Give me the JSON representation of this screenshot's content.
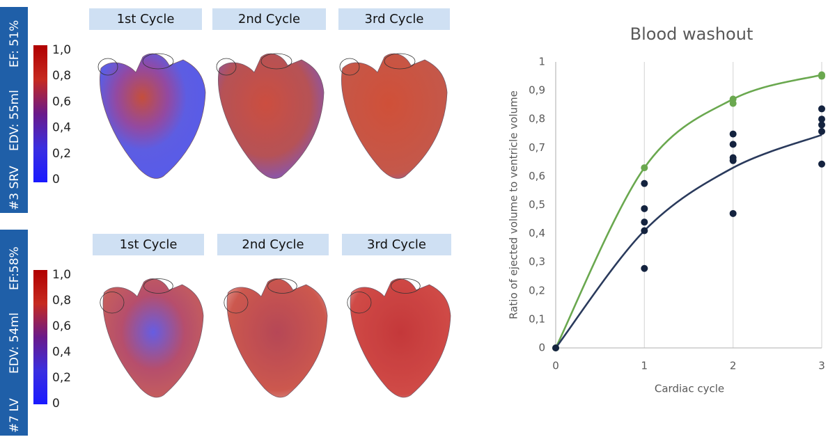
{
  "panels": [
    {
      "sidebar": [
        "#3 SRV",
        "EDV: 55ml",
        "EF: 51%"
      ],
      "cycles": [
        "1st Cycle",
        "2nd Cycle",
        "3rd Cycle"
      ],
      "colorbar_ticks": [
        {
          "value": 1,
          "label": "1,0"
        },
        {
          "value": 0.8,
          "label": "0,8"
        },
        {
          "value": 0.6,
          "label": "0,6"
        },
        {
          "value": 0.4,
          "label": "0,4"
        },
        {
          "value": 0.2,
          "label": "0,2"
        },
        0
      ]
    },
    {
      "sidebar": [
        "#7 LV",
        "EDV: 54ml",
        "EF:58%"
      ],
      "cycles": [
        "1st Cycle",
        "2nd Cycle",
        "3rd Cycle"
      ],
      "colorbar_ticks": [
        {
          "value": 1,
          "label": "1,0"
        },
        {
          "value": 0.8,
          "label": "0,8"
        },
        {
          "value": 0.6,
          "label": "0,6"
        },
        {
          "value": 0.4,
          "label": "0,4"
        },
        {
          "value": 0.2,
          "label": "0,2"
        },
        0
      ]
    }
  ],
  "chart_data": {
    "type": "scatter",
    "title": "Blood washout",
    "x_label": "Cardiac cycle",
    "y_label": "Ratio of ejected volume to ventricle volume",
    "xlim": [
      0,
      3
    ],
    "xticks": [
      0,
      1,
      2,
      3
    ],
    "ylim": [
      0,
      1
    ],
    "yticks": [
      0,
      {
        "value": 0.1,
        "label": "0,1"
      },
      {
        "value": 0.2,
        "label": "0,2"
      },
      {
        "value": 0.3,
        "label": "0,3"
      },
      {
        "value": 0.4,
        "label": "0,4"
      },
      {
        "value": 0.5,
        "label": "0,5"
      },
      {
        "value": 0.6,
        "label": "0,6"
      },
      {
        "value": 0.7,
        "label": "0,7"
      },
      {
        "value": 0.8,
        "label": "0,8"
      },
      {
        "value": 0.9,
        "label": "0,9"
      },
      1
    ],
    "grid": "x",
    "series": [
      {
        "color": "#6aa84f",
        "style": "points",
        "x": [
          0,
          1,
          2,
          2,
          3,
          3
        ],
        "values": [
          0,
          0.63,
          0.87,
          0.855,
          0.955,
          0.95
        ]
      },
      {
        "color": "#14233f",
        "style": "points",
        "x": [
          0,
          1,
          1,
          1,
          1,
          1,
          2,
          2,
          2,
          2,
          2,
          3,
          3,
          3,
          3,
          3
        ],
        "values": [
          0,
          0.575,
          0.487,
          0.44,
          0.41,
          0.278,
          0.748,
          0.712,
          0.665,
          0.655,
          0.47,
          0.836,
          0.8,
          0.78,
          0.757,
          0.643
        ]
      },
      {
        "color": "#6aa84f",
        "style": "line",
        "x": [
          0,
          1,
          2,
          3
        ],
        "values": [
          0,
          0.63,
          0.87,
          0.955
        ]
      },
      {
        "color": "#2a3a5c",
        "style": "line",
        "x": [
          0,
          1,
          2,
          3
        ],
        "values": [
          0,
          0.41,
          0.63,
          0.745
        ]
      }
    ]
  }
}
